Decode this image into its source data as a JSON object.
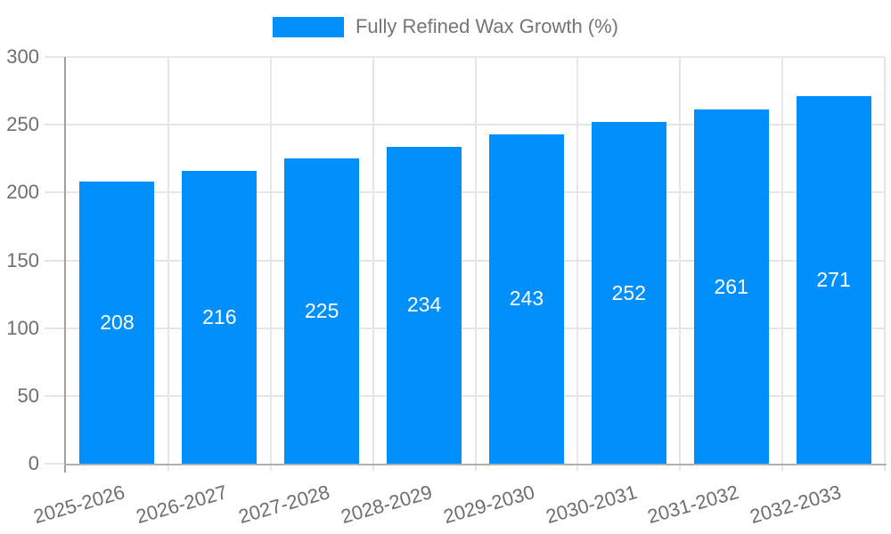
{
  "legend": {
    "label": "Fully Refined Wax Growth (%)",
    "swatch_color": "#008FFB"
  },
  "colors": {
    "bar": "#008FFB",
    "data_label": "#ffffff",
    "axis_label": "#6e6e6e",
    "legend_label": "#757575",
    "gridline": "#e6e6e6",
    "y_axis_line": "#a0a0a0",
    "x_axis_line": "#b0b0b0",
    "background": "#ffffff"
  },
  "chart_data": {
    "type": "bar",
    "title": "",
    "xlabel": "",
    "ylabel": "",
    "categories": [
      "2025-2026",
      "2026-2027",
      "2027-2028",
      "2028-2029",
      "2029-2030",
      "2030-2031",
      "2031-2032",
      "2032-2033"
    ],
    "series": [
      {
        "name": "Fully Refined Wax Growth (%)",
        "values": [
          208,
          216,
          225,
          234,
          243,
          252,
          261,
          271
        ]
      }
    ],
    "ylim": [
      0,
      300
    ],
    "yticks": [
      0,
      50,
      100,
      150,
      200,
      250,
      300
    ],
    "grid": "horizontal gridlines at each y tick, vertical gridlines at category boundaries",
    "legend_position": "top-center",
    "data_labels": "values shown in white, centered inside bars",
    "x_label_rotation_deg": -16,
    "bar_color": "#008FFB"
  }
}
